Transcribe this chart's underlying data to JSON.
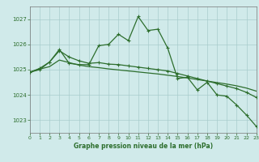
{
  "background_color": "#d0eaea",
  "grid_color": "#a8cccc",
  "line_color": "#2d6e2d",
  "xlabel": "Graphe pression niveau de la mer (hPa)",
  "xlim": [
    0,
    23
  ],
  "ylim": [
    1022.5,
    1027.5
  ],
  "yticks": [
    1023,
    1024,
    1025,
    1026,
    1027
  ],
  "xticks": [
    0,
    1,
    2,
    3,
    4,
    5,
    6,
    7,
    8,
    9,
    10,
    11,
    12,
    13,
    14,
    15,
    16,
    17,
    18,
    19,
    20,
    21,
    22,
    23
  ],
  "series1_x": [
    0,
    1,
    2,
    3,
    4,
    5,
    6,
    7,
    8,
    9,
    10,
    11,
    12,
    13,
    14,
    15,
    16,
    17,
    18,
    19,
    20,
    21,
    22,
    23
  ],
  "series1_y": [
    1024.9,
    1025.0,
    1025.3,
    1025.8,
    1025.25,
    1025.2,
    1025.2,
    1025.95,
    1026.0,
    1026.4,
    1026.15,
    1027.1,
    1026.55,
    1026.6,
    1025.85,
    1024.65,
    1024.7,
    1024.2,
    1024.5,
    1024.0,
    1023.95,
    1023.6,
    1023.2,
    1022.75
  ],
  "series2_x": [
    0,
    1,
    2,
    3,
    4,
    5,
    6,
    7,
    8,
    9,
    10,
    11,
    12,
    13,
    14,
    15,
    16,
    17,
    18,
    19,
    20,
    21,
    22,
    23
  ],
  "series2_y": [
    1024.9,
    1025.05,
    1025.3,
    1025.75,
    1025.5,
    1025.35,
    1025.25,
    1025.28,
    1025.22,
    1025.2,
    1025.15,
    1025.1,
    1025.05,
    1025.0,
    1024.95,
    1024.85,
    1024.75,
    1024.65,
    1024.55,
    1024.45,
    1024.35,
    1024.25,
    1024.1,
    1023.9
  ],
  "series3_x": [
    0,
    1,
    2,
    3,
    4,
    5,
    6,
    7,
    8,
    9,
    10,
    11,
    12,
    13,
    14,
    15,
    16,
    17,
    18,
    19,
    20,
    21,
    22,
    23
  ],
  "series3_y": [
    1024.9,
    1025.02,
    1025.12,
    1025.38,
    1025.28,
    1025.18,
    1025.12,
    1025.08,
    1025.03,
    1024.99,
    1024.95,
    1024.91,
    1024.87,
    1024.83,
    1024.78,
    1024.73,
    1024.67,
    1024.61,
    1024.55,
    1024.49,
    1024.43,
    1024.36,
    1024.27,
    1024.15
  ]
}
